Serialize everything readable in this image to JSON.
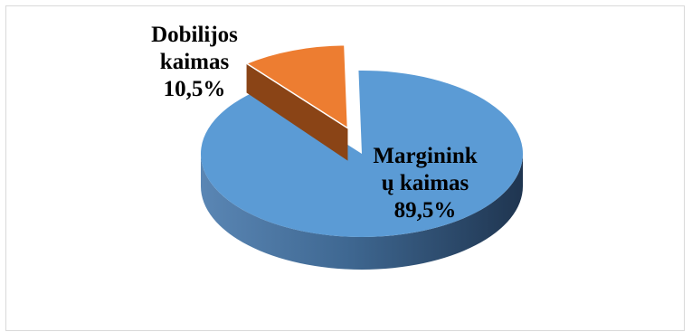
{
  "chart_data": {
    "type": "pie",
    "title": "",
    "slices": [
      {
        "name_lines": [
          "Dobilijos",
          "kaimas"
        ],
        "value": 10.5,
        "value_label": "10,5%",
        "color": "#ed7d31"
      },
      {
        "name_lines": [
          "Marginink",
          "ų kaimas"
        ],
        "value": 89.5,
        "value_label": "89,5%",
        "color": "#5b9bd5"
      }
    ],
    "style": "3d-exploded",
    "legend": "none"
  }
}
